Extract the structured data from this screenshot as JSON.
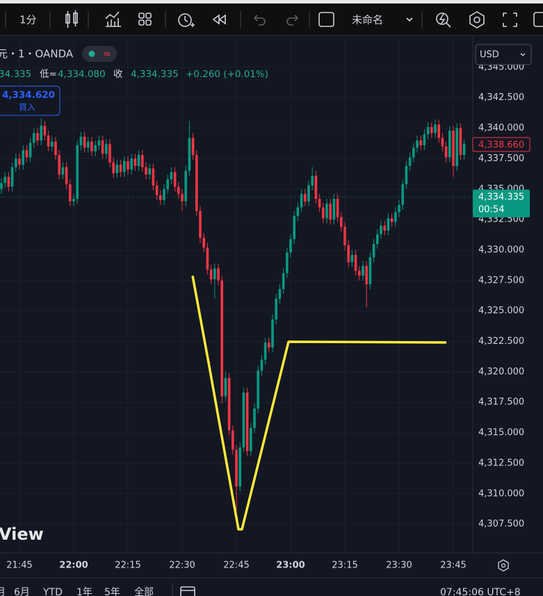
{
  "toolbar": {
    "interval": "1分",
    "layout_name": "未命名"
  },
  "symbol": "元・1・OANDA",
  "ohlc_line": {
    "open_partial": "34.335",
    "low_label": "低=",
    "low": "4,334.080",
    "close_label": "收",
    "close": "4,334.335",
    "change": "+0.260 (+0.01%)"
  },
  "buy_button": {
    "price": "4,334.620",
    "label": "買入"
  },
  "currency": "USD",
  "watermark": "View",
  "range_buttons": [
    "月",
    "6月",
    "YTD",
    "1年",
    "5年",
    "全部"
  ],
  "clock": "07:45:06 UTC+8",
  "chart_data": {
    "type": "candlestick",
    "up_color": "#089981",
    "down_color": "#f23645",
    "grid": true,
    "x": [
      "21:40",
      "21:41",
      "21:42",
      "21:43",
      "21:44",
      "21:45",
      "21:46",
      "21:47",
      "21:48",
      "21:49",
      "21:50",
      "21:51",
      "21:52",
      "21:53",
      "21:54",
      "21:55",
      "21:56",
      "21:57",
      "21:58",
      "21:59",
      "22:00",
      "22:01",
      "22:02",
      "22:03",
      "22:04",
      "22:05",
      "22:06",
      "22:07",
      "22:08",
      "22:09",
      "22:10",
      "22:11",
      "22:12",
      "22:13",
      "22:14",
      "22:15",
      "22:16",
      "22:17",
      "22:18",
      "22:19",
      "22:20",
      "22:21",
      "22:22",
      "22:23",
      "22:24",
      "22:25",
      "22:26",
      "22:27",
      "22:28",
      "22:29",
      "22:30",
      "22:31",
      "22:32",
      "22:33",
      "22:34",
      "22:35",
      "22:36",
      "22:37",
      "22:38",
      "22:39",
      "22:40",
      "22:41",
      "22:42",
      "22:43",
      "22:44",
      "22:45",
      "22:46",
      "22:47",
      "22:48",
      "22:49",
      "22:50",
      "22:51",
      "22:52",
      "22:53",
      "22:54",
      "22:55",
      "22:56",
      "22:57",
      "22:58",
      "22:59",
      "23:00",
      "23:01",
      "23:02",
      "23:03",
      "23:04",
      "23:05",
      "23:06",
      "23:07",
      "23:08",
      "23:09",
      "23:10",
      "23:11",
      "23:12",
      "23:13",
      "23:14",
      "23:15",
      "23:16",
      "23:17",
      "23:18",
      "23:19",
      "23:20",
      "23:21",
      "23:22",
      "23:23",
      "23:24",
      "23:25",
      "23:26",
      "23:27",
      "23:28",
      "23:29",
      "23:30",
      "23:31",
      "23:32",
      "23:33",
      "23:34",
      "23:35",
      "23:36",
      "23:37",
      "23:38",
      "23:39",
      "23:40",
      "23:41",
      "23:42",
      "23:43",
      "23:44",
      "23:45",
      "23:46",
      "23:47",
      "23:48"
    ],
    "open": [
      4335.0,
      4335.5,
      4336.0,
      4335.2,
      4336.8,
      4337.5,
      4337.0,
      4338.2,
      4337.6,
      4338.8,
      4339.6,
      4339.0,
      4340.2,
      4339.4,
      4338.5,
      4338.9,
      4337.8,
      4336.2,
      4336.8,
      4335.4,
      4334.0,
      4334.2,
      4338.6,
      4339.3,
      4338.4,
      4338.9,
      4338.1,
      4338.6,
      4339.0,
      4337.9,
      4338.7,
      4337.2,
      4336.3,
      4337.0,
      4336.4,
      4337.3,
      4336.6,
      4337.5,
      4336.9,
      4337.8,
      4336.8,
      4336.2,
      4336.7,
      4335.3,
      4334.5,
      4334.1,
      4335.0,
      4335.8,
      4336.4,
      4335.2,
      4334.6,
      4334.0,
      4336.5,
      4339.2,
      4337.8,
      4333.2,
      4331.0,
      4330.2,
      4328.4,
      4327.6,
      4328.5,
      4327.5,
      4318.0,
      4319.5,
      4315.2,
      4313.6,
      4310.6,
      4313.8,
      4318.3,
      4313.5,
      4315.4,
      4317.0,
      4320.1,
      4321.0,
      4322.4,
      4322.0,
      4324.3,
      4326.0,
      4326.8,
      4328.1,
      4329.8,
      4330.9,
      4332.8,
      4333.5,
      4334.6,
      4334.0,
      4335.3,
      4336.1,
      4334.2,
      4333.5,
      4332.6,
      4333.8,
      4332.5,
      4334.2,
      4332.7,
      4331.9,
      4330.4,
      4329.0,
      4329.6,
      4328.3,
      4327.9,
      4328.7,
      4327.2,
      4329.4,
      4330.5,
      4331.3,
      4332.0,
      4331.6,
      4332.6,
      4332.3,
      4333.1,
      4333.7,
      4335.4,
      4336.9,
      4337.6,
      4338.4,
      4339.0,
      4338.6,
      4339.5,
      4340.1,
      4339.6,
      4340.3,
      4339.2,
      4338.5,
      4337.6,
      4339.8,
      4336.9,
      4340.0,
      4337.8
    ],
    "high": [
      4335.9,
      4336.4,
      4336.4,
      4337.2,
      4337.9,
      4337.9,
      4338.6,
      4338.6,
      4339.2,
      4340.0,
      4340.0,
      4340.8,
      4340.6,
      4339.8,
      4339.3,
      4339.3,
      4338.2,
      4337.2,
      4337.2,
      4335.8,
      4334.6,
      4339.0,
      4339.7,
      4339.7,
      4339.3,
      4339.3,
      4339.0,
      4339.4,
      4339.4,
      4339.1,
      4339.1,
      4337.6,
      4337.4,
      4337.4,
      4337.7,
      4337.7,
      4337.9,
      4337.9,
      4338.2,
      4338.2,
      4337.2,
      4337.1,
      4337.1,
      4335.7,
      4334.9,
      4335.4,
      4336.2,
      4336.8,
      4336.8,
      4335.6,
      4335.0,
      4336.9,
      4340.6,
      4339.6,
      4338.2,
      4333.6,
      4331.4,
      4330.6,
      4328.8,
      4328.9,
      4328.9,
      4327.9,
      4320.0,
      4319.9,
      4315.6,
      4314.0,
      4314.2,
      4318.7,
      4318.7,
      4315.8,
      4317.4,
      4320.5,
      4321.4,
      4322.8,
      4322.8,
      4324.7,
      4326.4,
      4327.2,
      4328.5,
      4330.2,
      4331.3,
      4333.2,
      4333.9,
      4335.0,
      4335.0,
      4335.7,
      4336.8,
      4336.5,
      4334.6,
      4333.9,
      4334.2,
      4334.2,
      4334.6,
      4334.6,
      4333.1,
      4332.3,
      4330.8,
      4330.0,
      4330.0,
      4328.7,
      4329.1,
      4329.1,
      4329.8,
      4330.9,
      4331.7,
      4332.4,
      4332.4,
      4333.0,
      4333.0,
      4333.5,
      4334.1,
      4335.8,
      4337.3,
      4338.0,
      4338.8,
      4339.4,
      4339.4,
      4339.9,
      4340.5,
      4340.5,
      4340.7,
      4340.7,
      4339.6,
      4338.9,
      4340.2,
      4340.2,
      4340.4,
      4340.4,
      4339.1
    ],
    "low": [
      4334.6,
      4335.1,
      4334.8,
      4334.8,
      4336.4,
      4336.6,
      4336.6,
      4337.2,
      4337.2,
      4338.4,
      4338.6,
      4338.6,
      4339.0,
      4338.1,
      4338.1,
      4337.4,
      4335.8,
      4335.8,
      4335.0,
      4333.6,
      4333.6,
      4333.8,
      4338.2,
      4338.0,
      4338.0,
      4337.7,
      4337.7,
      4338.2,
      4337.5,
      4337.5,
      4336.8,
      4335.9,
      4335.9,
      4336.0,
      4336.0,
      4336.2,
      4336.2,
      4336.5,
      4336.5,
      4336.4,
      4335.8,
      4335.8,
      4334.9,
      4334.1,
      4333.7,
      4333.7,
      4334.6,
      4335.4,
      4334.8,
      4334.2,
      4333.2,
      4333.6,
      4336.1,
      4337.4,
      4332.8,
      4330.6,
      4329.8,
      4328.0,
      4327.2,
      4326.0,
      4327.1,
      4317.4,
      4317.6,
      4314.8,
      4313.2,
      4308.6,
      4310.2,
      4313.4,
      4313.1,
      4313.1,
      4315.0,
      4316.6,
      4319.7,
      4320.6,
      4321.6,
      4321.6,
      4323.9,
      4325.6,
      4326.4,
      4327.7,
      4329.4,
      4330.5,
      4332.4,
      4333.1,
      4333.6,
      4333.6,
      4334.9,
      4333.8,
      4333.1,
      4332.2,
      4332.2,
      4332.1,
      4332.1,
      4332.3,
      4331.5,
      4330.0,
      4328.6,
      4328.6,
      4327.9,
      4327.5,
      4327.5,
      4325.3,
      4326.8,
      4329.0,
      4330.1,
      4330.9,
      4331.2,
      4331.2,
      4331.9,
      4331.9,
      4332.7,
      4333.3,
      4335.0,
      4336.5,
      4337.2,
      4338.0,
      4338.2,
      4338.2,
      4339.1,
      4339.2,
      4339.2,
      4338.8,
      4338.1,
      4337.2,
      4337.2,
      4336.0,
      4336.5,
      4337.4,
      4337.4
    ],
    "close": [
      4335.5,
      4336.0,
      4335.2,
      4336.8,
      4337.5,
      4337.0,
      4338.2,
      4337.6,
      4338.8,
      4339.6,
      4339.0,
      4340.2,
      4339.4,
      4338.5,
      4338.9,
      4337.8,
      4336.2,
      4336.8,
      4335.4,
      4334.0,
      4334.2,
      4338.6,
      4339.3,
      4338.4,
      4338.9,
      4338.1,
      4338.6,
      4339.0,
      4337.9,
      4338.7,
      4337.2,
      4336.3,
      4337.0,
      4336.4,
      4337.3,
      4336.6,
      4337.5,
      4336.9,
      4337.8,
      4336.8,
      4336.2,
      4336.7,
      4335.3,
      4334.5,
      4334.1,
      4335.0,
      4335.8,
      4336.4,
      4335.2,
      4334.6,
      4334.0,
      4336.5,
      4339.2,
      4337.8,
      4333.2,
      4331.0,
      4330.2,
      4328.4,
      4327.6,
      4328.5,
      4327.5,
      4318.0,
      4319.5,
      4315.2,
      4313.6,
      4310.6,
      4313.8,
      4318.3,
      4313.5,
      4315.4,
      4317.0,
      4320.1,
      4321.0,
      4322.4,
      4322.0,
      4324.3,
      4326.0,
      4326.8,
      4328.1,
      4329.8,
      4330.9,
      4332.8,
      4333.5,
      4334.6,
      4334.0,
      4335.3,
      4336.1,
      4334.2,
      4333.5,
      4332.6,
      4333.8,
      4332.5,
      4334.2,
      4332.7,
      4331.9,
      4330.4,
      4329.0,
      4329.6,
      4328.3,
      4327.9,
      4328.7,
      4327.2,
      4329.4,
      4330.5,
      4331.3,
      4332.0,
      4331.6,
      4332.6,
      4332.3,
      4333.1,
      4333.7,
      4335.4,
      4336.9,
      4337.6,
      4338.4,
      4339.0,
      4338.6,
      4339.5,
      4340.1,
      4339.6,
      4340.3,
      4339.2,
      4338.5,
      4337.6,
      4339.8,
      4336.9,
      4340.0,
      4337.8,
      4338.7
    ],
    "xlim": [
      "21:40",
      "23:50"
    ],
    "xticks": [
      "21:45",
      "22:00",
      "22:15",
      "22:30",
      "22:45",
      "23:00",
      "23:15",
      "23:30",
      "23:45"
    ],
    "ylim": [
      4305.2,
      4347.1
    ],
    "yticks": [
      {
        "value": 4345,
        "label": "4,345.000"
      },
      {
        "value": 4342.5,
        "label": "4,342.500"
      },
      {
        "value": 4340,
        "label": "4,340.000"
      },
      {
        "value": 4337.5,
        "label": "4,337.500"
      },
      {
        "value": 4335,
        "label": "4,335.000"
      },
      {
        "value": 4332.5,
        "label": "4,332.500"
      },
      {
        "value": 4330,
        "label": "4,330.000"
      },
      {
        "value": 4327.5,
        "label": "4,327.500"
      },
      {
        "value": 4325,
        "label": "4,325.000"
      },
      {
        "value": 4322.5,
        "label": "4,322.500"
      },
      {
        "value": 4320,
        "label": "4,320.000"
      },
      {
        "value": 4317.5,
        "label": "4,317.500"
      },
      {
        "value": 4315,
        "label": "4,315.000"
      },
      {
        "value": 4312.5,
        "label": "4,312.500"
      },
      {
        "value": 4310,
        "label": "4,310.000"
      },
      {
        "value": 4307.5,
        "label": "4,307.500"
      }
    ],
    "price_markers": {
      "high": {
        "value": 4338.66,
        "label": "4,338.660",
        "color": "#f23645"
      },
      "current": {
        "value": 4334.335,
        "label": "4,334.335",
        "countdown": "00:54",
        "color": "#089981"
      }
    }
  }
}
